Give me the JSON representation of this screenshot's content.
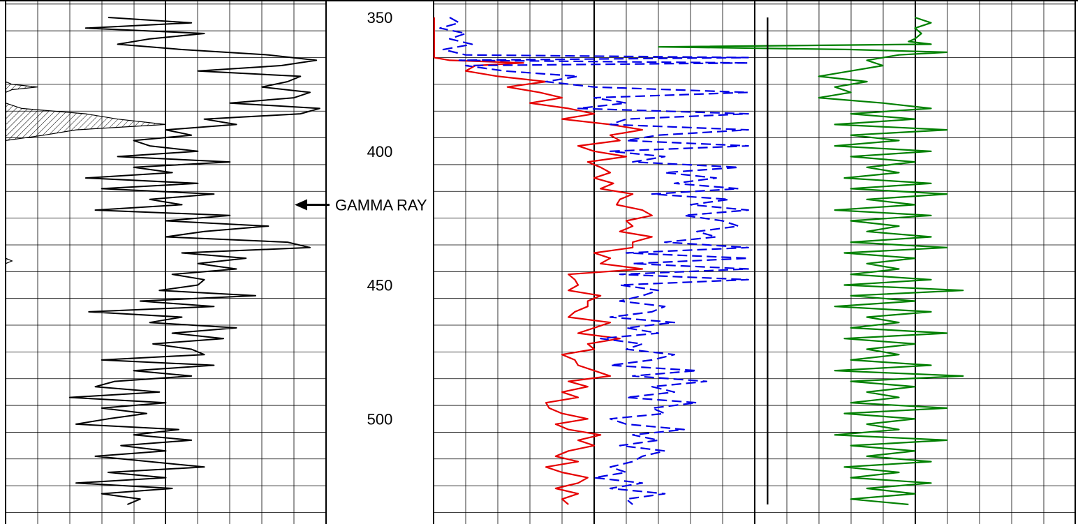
{
  "chart_data": {
    "type": "line",
    "title": "",
    "depth_axis": {
      "range": [
        350,
        532
      ],
      "tick_labels": [
        "350",
        "400",
        "450",
        "500"
      ],
      "tick_values": [
        350,
        400,
        450,
        500
      ]
    },
    "annotation": {
      "text": "GAMMA RAY",
      "arrow_target": "gamma-ray-curve"
    },
    "grid": true,
    "tracks": [
      {
        "name": "",
        "series": [
          {
            "name": "GAMMA RAY",
            "color": "#000000",
            "style": "solid",
            "depth": [
              350,
              352,
              354,
              356,
              358,
              360,
              362,
              364,
              366,
              368,
              370,
              372,
              374,
              376,
              378,
              380,
              382,
              384,
              386,
              388,
              390,
              392,
              394,
              396,
              398,
              400,
              402,
              404,
              406,
              408,
              410,
              412,
              414,
              416,
              418,
              420,
              422,
              424,
              426,
              428,
              430,
              432,
              434,
              436,
              438,
              440,
              442,
              444,
              446,
              448,
              450,
              452,
              454,
              456,
              458,
              460,
              462,
              464,
              466,
              468,
              470,
              472,
              474,
              476,
              478,
              480,
              482,
              484,
              486,
              488,
              490,
              492,
              494,
              496,
              498,
              500,
              502,
              504,
              506,
              508,
              510,
              512,
              514,
              516,
              518,
              520,
              522,
              524,
              526,
              528,
              530,
              532
            ],
            "value": [
              0.32,
              0.58,
              0.25,
              0.62,
              0.45,
              0.35,
              0.55,
              0.82,
              0.97,
              0.86,
              0.6,
              0.92,
              0.88,
              0.8,
              0.95,
              0.9,
              0.7,
              0.98,
              0.92,
              0.62,
              0.72,
              0.5,
              0.58,
              0.4,
              0.45,
              0.6,
              0.35,
              0.7,
              0.4,
              0.52,
              0.25,
              0.6,
              0.3,
              0.65,
              0.45,
              0.55,
              0.28,
              0.7,
              0.5,
              0.82,
              0.62,
              0.5,
              0.88,
              0.95,
              0.55,
              0.75,
              0.6,
              0.72,
              0.52,
              0.62,
              0.6,
              0.48,
              0.78,
              0.42,
              0.65,
              0.26,
              0.55,
              0.45,
              0.72,
              0.52,
              0.68,
              0.46,
              0.58,
              0.62,
              0.3,
              0.65,
              0.4,
              0.58,
              0.34,
              0.28,
              0.48,
              0.2,
              0.5,
              0.3,
              0.44,
              0.32,
              0.22,
              0.54,
              0.4,
              0.58,
              0.36,
              0.5,
              0.28,
              0.45,
              0.62,
              0.32,
              0.5,
              0.22,
              0.52,
              0.3,
              0.42,
              0.38
            ]
          },
          {
            "name": "",
            "color": "#000000",
            "style": "hatched",
            "depth": [
              350,
              372,
              374,
              375,
              376,
              377,
              378,
              380,
              382,
              384,
              386,
              388,
              390,
              392,
              394,
              396,
              398,
              400,
              410,
              420,
              430,
              440,
              441,
              442,
              450,
              460,
              470,
              480,
              490,
              500,
              510,
              520,
              530,
              532
            ],
            "value": [
              0,
              0,
              0,
              0.02,
              0.1,
              0.02,
              0,
              0,
              0,
              0.05,
              0.25,
              0.35,
              0.5,
              0.22,
              0.12,
              0,
              0,
              0,
              0,
              0,
              0,
              0,
              0.02,
              0,
              0,
              0,
              0,
              0,
              0,
              0,
              0,
              0,
              0,
              0
            ]
          }
        ]
      },
      {
        "name": "",
        "series": [
          {
            "name": "",
            "color": "#e60000",
            "style": "solid",
            "depth": [
              350,
              353,
              356,
              359,
              362,
              365,
              366,
              367,
              368,
              370,
              372,
              374,
              376,
              378,
              380,
              382,
              384,
              386,
              388,
              390,
              392,
              394,
              396,
              398,
              400,
              402,
              404,
              406,
              408,
              410,
              412,
              414,
              416,
              418,
              420,
              422,
              424,
              426,
              428,
              430,
              432,
              434,
              436,
              438,
              440,
              442,
              444,
              446,
              448,
              450,
              452,
              454,
              456,
              458,
              460,
              462,
              464,
              466,
              468,
              470,
              472,
              474,
              476,
              478,
              480,
              482,
              484,
              486,
              488,
              490,
              492,
              494,
              496,
              498,
              500,
              502,
              504,
              506,
              508,
              510,
              512,
              514,
              516,
              518,
              520,
              522,
              524,
              526,
              528,
              530,
              532
            ],
            "value": [
              0.002,
              0.002,
              0.002,
              0.002,
              0.002,
              0.002,
              0.05,
              0.28,
              0.13,
              0.1,
              0.2,
              0.35,
              0.23,
              0.33,
              0.4,
              0.3,
              0.42,
              0.5,
              0.4,
              0.55,
              0.65,
              0.55,
              0.58,
              0.45,
              0.5,
              0.6,
              0.48,
              0.52,
              0.55,
              0.5,
              0.56,
              0.52,
              0.62,
              0.58,
              0.57,
              0.65,
              0.68,
              0.6,
              0.62,
              0.58,
              0.68,
              0.62,
              0.62,
              0.5,
              0.55,
              0.52,
              0.65,
              0.42,
              0.44,
              0.45,
              0.42,
              0.52,
              0.48,
              0.48,
              0.44,
              0.42,
              0.55,
              0.5,
              0.45,
              0.58,
              0.48,
              0.5,
              0.4,
              0.44,
              0.45,
              0.5,
              0.55,
              0.42,
              0.48,
              0.4,
              0.45,
              0.35,
              0.36,
              0.4,
              0.48,
              0.38,
              0.42,
              0.52,
              0.45,
              0.5,
              0.42,
              0.38,
              0.45,
              0.35,
              0.4,
              0.48,
              0.45,
              0.38,
              0.45,
              0.4,
              0.42
            ]
          },
          {
            "name": "",
            "color": "#0000e6",
            "style": "dashed",
            "depth": [
              350,
              352,
              354,
              356,
              358,
              360,
              362,
              364,
              365,
              366,
              367,
              368,
              370,
              372,
              374,
              376,
              378,
              380,
              382,
              384,
              386,
              388,
              390,
              392,
              394,
              396,
              398,
              400,
              402,
              404,
              406,
              408,
              410,
              412,
              414,
              416,
              418,
              420,
              422,
              424,
              426,
              428,
              430,
              432,
              434,
              436,
              438,
              440,
              442,
              444,
              446,
              448,
              450,
              452,
              454,
              456,
              458,
              460,
              462,
              464,
              466,
              468,
              470,
              472,
              474,
              476,
              478,
              480,
              482,
              484,
              486,
              488,
              490,
              492,
              494,
              496,
              498,
              500,
              502,
              504,
              506,
              508,
              510,
              512,
              514,
              516,
              518,
              520,
              522,
              524,
              526,
              528,
              530,
              532
            ],
            "value": [
              0.05,
              0.08,
              0.02,
              0.1,
              0.05,
              0.12,
              0.03,
              0.1,
              0.98,
              0.08,
              0.98,
              0.1,
              0.22,
              0.45,
              0.35,
              0.5,
              0.98,
              0.5,
              0.6,
              0.45,
              0.98,
              0.6,
              0.55,
              0.98,
              0.7,
              0.6,
              0.98,
              0.55,
              0.72,
              0.62,
              0.95,
              0.72,
              0.88,
              0.75,
              0.95,
              0.68,
              0.92,
              0.8,
              0.98,
              0.78,
              0.9,
              0.95,
              0.82,
              0.88,
              0.72,
              0.98,
              0.6,
              0.98,
              0.62,
              0.98,
              0.58,
              0.98,
              0.58,
              0.7,
              0.65,
              0.58,
              0.72,
              0.68,
              0.55,
              0.75,
              0.6,
              0.7,
              0.52,
              0.65,
              0.6,
              0.75,
              0.68,
              0.55,
              0.82,
              0.62,
              0.85,
              0.68,
              0.75,
              0.6,
              0.82,
              0.68,
              0.72,
              0.55,
              0.6,
              0.78,
              0.62,
              0.7,
              0.58,
              0.72,
              0.65,
              0.62,
              0.55,
              0.6,
              0.5,
              0.65,
              0.55,
              0.72,
              0.6,
              0.62
            ]
          }
        ]
      },
      {
        "name": "",
        "series": [
          {
            "name": "",
            "color": "#008000",
            "style": "solid",
            "depth": [
              350,
              352,
              354,
              356,
              358,
              359,
              360,
              361,
              362,
              363,
              364,
              366,
              368,
              370,
              372,
              374,
              376,
              378,
              380,
              382,
              384,
              386,
              388,
              390,
              392,
              394,
              396,
              398,
              400,
              402,
              404,
              406,
              408,
              410,
              412,
              414,
              416,
              418,
              420,
              422,
              424,
              426,
              428,
              430,
              432,
              434,
              436,
              438,
              440,
              442,
              444,
              446,
              448,
              450,
              452,
              454,
              456,
              458,
              460,
              462,
              464,
              466,
              468,
              470,
              472,
              474,
              476,
              478,
              480,
              482,
              484,
              486,
              488,
              490,
              492,
              494,
              496,
              498,
              500,
              502,
              504,
              506,
              508,
              510,
              512,
              514,
              516,
              518,
              520,
              522,
              524,
              526,
              528,
              530,
              532
            ],
            "value": [
              0.5,
              0.55,
              0.5,
              0.52,
              0.5,
              0.48,
              0.55,
              -0.3,
              0.3,
              0.6,
              0.45,
              0.35,
              0.4,
              0.3,
              0.2,
              0.35,
              0.25,
              0.3,
              0.2,
              0.4,
              0.55,
              0.3,
              0.5,
              0.25,
              0.6,
              0.3,
              0.45,
              0.25,
              0.55,
              0.3,
              0.5,
              0.35,
              0.45,
              0.28,
              0.55,
              0.3,
              0.6,
              0.35,
              0.5,
              0.25,
              0.55,
              0.3,
              0.45,
              0.35,
              0.55,
              0.3,
              0.6,
              0.28,
              0.5,
              0.35,
              0.45,
              0.3,
              0.55,
              0.28,
              0.65,
              0.3,
              0.5,
              0.25,
              0.55,
              0.35,
              0.45,
              0.3,
              0.6,
              0.28,
              0.5,
              0.35,
              0.45,
              0.3,
              0.55,
              0.25,
              0.65,
              0.3,
              0.5,
              0.35,
              0.45,
              0.3,
              0.6,
              0.28,
              0.5,
              0.35,
              0.45,
              0.25,
              0.6,
              0.3,
              0.5,
              0.35,
              0.55,
              0.28,
              0.45,
              0.3,
              0.55,
              0.35,
              0.5,
              0.3,
              0.48
            ]
          },
          {
            "name": "",
            "color": "#000000",
            "style": "solid",
            "depth": [
              350,
              532
            ],
            "value": [
              0.04,
              0.04
            ]
          }
        ]
      }
    ]
  }
}
